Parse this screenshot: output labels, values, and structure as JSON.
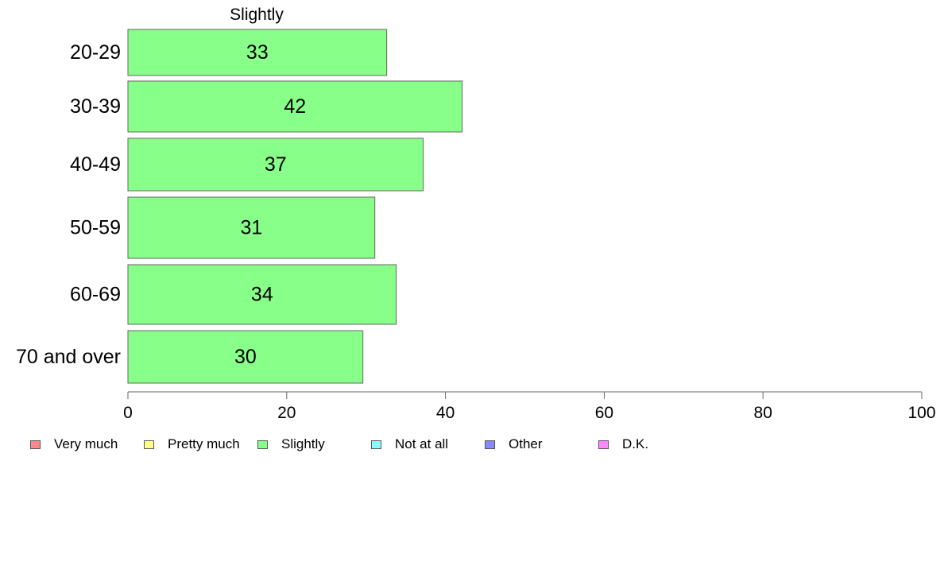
{
  "chart_data": {
    "type": "bar",
    "orientation": "horizontal",
    "title": "Slightly",
    "categories": [
      "20-29",
      "30-39",
      "40-49",
      "50-59",
      "60-69",
      "70 and over"
    ],
    "values": [
      33,
      42,
      37,
      31,
      34,
      30
    ],
    "bar_value_extents": [
      32.6,
      42.1,
      37.2,
      31.1,
      33.8,
      29.6
    ],
    "xlim": [
      0,
      100
    ],
    "xticks": [
      0,
      20,
      40,
      60,
      80,
      100
    ],
    "bar_color": "#88ff88",
    "grid": false,
    "legend_position": "bottom",
    "legend": [
      {
        "label": "Very much",
        "color": "#ff8888"
      },
      {
        "label": "Pretty much",
        "color": "#ffff88"
      },
      {
        "label": "Slightly",
        "color": "#88ff88"
      },
      {
        "label": "Not at all",
        "color": "#88ffff"
      },
      {
        "label": "Other",
        "color": "#8888ff"
      },
      {
        "label": "D.K.",
        "color": "#ff88ff"
      }
    ]
  }
}
